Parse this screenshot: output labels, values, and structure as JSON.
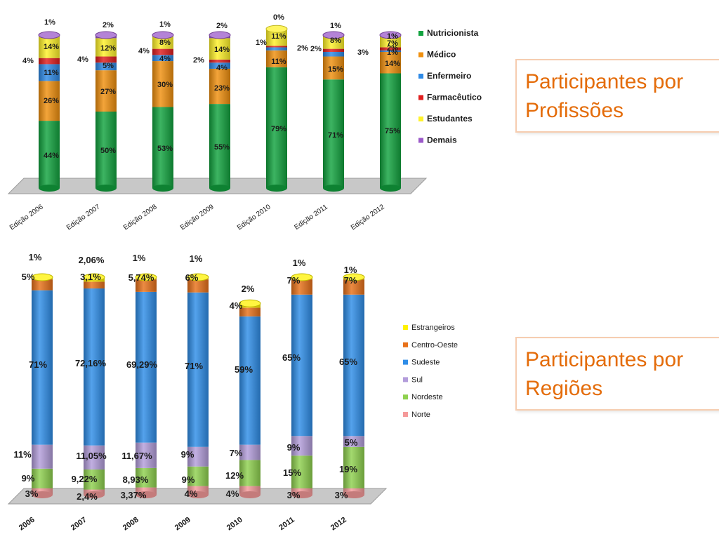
{
  "title_boxes": [
    {
      "line1": "Participantes por",
      "line2": "Profissões"
    },
    {
      "line1": "Participantes por",
      "line2": "Regiões"
    }
  ],
  "chart_data": [
    {
      "type": "bar",
      "stacked": true,
      "categories": [
        "Edição 2006",
        "Edição 2007",
        "Edição 2008",
        "Edição 2009",
        "Edição 2010",
        "Edição 2011",
        "Edição 2012"
      ],
      "series": [
        {
          "name": "Nutricionista",
          "color": "#12a33f",
          "values": [
            44,
            50,
            53,
            55,
            79,
            71,
            75
          ],
          "labels": [
            "44%",
            "50%",
            "53%",
            "55%",
            "79%",
            "71%",
            "75%"
          ]
        },
        {
          "name": "Médico",
          "color": "#f0900f",
          "values": [
            26,
            27,
            30,
            23,
            11,
            15,
            14
          ],
          "labels": [
            "26%",
            "27%",
            "30%",
            "23%",
            "11%",
            "15%",
            "14%"
          ]
        },
        {
          "name": "Enfermeiro",
          "color": "#2e8ae6",
          "values": [
            11,
            5,
            4,
            4,
            2,
            3,
            1
          ],
          "labels": [
            "11%",
            "5%",
            "4%",
            "4%",
            "2%",
            "3%",
            "1%"
          ]
        },
        {
          "name": "Farmacêutico",
          "color": "#e01d1d",
          "values": [
            4,
            4,
            4,
            2,
            1,
            2,
            2
          ],
          "labels": [
            "4%",
            "4%",
            "4%",
            "2%",
            "1%",
            "2%",
            "2%"
          ]
        },
        {
          "name": "Estudantes",
          "color": "#fff22a",
          "values": [
            14,
            12,
            8,
            14,
            11,
            8,
            7
          ],
          "labels": [
            "14%",
            "12%",
            "8%",
            "14%",
            "11%",
            "8%",
            "7%"
          ]
        },
        {
          "name": "Demais",
          "color": "#9b59c9",
          "values": [
            1,
            2,
            1,
            2,
            0,
            1,
            1
          ],
          "labels": [
            "1%",
            "2%",
            "1%",
            "2%",
            "0%",
            "1%",
            "1%"
          ]
        }
      ],
      "ylim": [
        0,
        100
      ],
      "legend": "right"
    },
    {
      "type": "bar",
      "stacked": true,
      "categories": [
        "2006",
        "2007",
        "2008",
        "2009",
        "2010",
        "2011",
        "2012"
      ],
      "series": [
        {
          "name": "Norte",
          "color": "#f59a9a",
          "values": [
            3,
            2.4,
            3.37,
            4,
            4,
            3,
            3
          ],
          "labels": [
            "3%",
            "2,4%",
            "3,37%",
            "4%",
            "4%",
            "3%",
            "3%"
          ]
        },
        {
          "name": "Nordeste",
          "color": "#8fd14f",
          "values": [
            9,
            9.22,
            8.93,
            9,
            12,
            15,
            19
          ],
          "labels": [
            "9%",
            "9,22%",
            "8,93%",
            "9%",
            "12%",
            "15%",
            "19%"
          ]
        },
        {
          "name": "Sul",
          "color": "#b39ddb",
          "values": [
            11,
            11.05,
            11.67,
            9,
            7,
            9,
            5
          ],
          "labels": [
            "11%",
            "11,05%",
            "11,67%",
            "9%",
            "7%",
            "9%",
            "5%"
          ]
        },
        {
          "name": "Sudeste",
          "color": "#2f8de8",
          "values": [
            71,
            72.16,
            69.29,
            71,
            59,
            65,
            65
          ],
          "labels": [
            "71%",
            "72,16%",
            "69,29%",
            "71%",
            "59%",
            "65%",
            "65%"
          ]
        },
        {
          "name": "Centro-Oeste",
          "color": "#e8711a",
          "values": [
            5,
            3.1,
            5.74,
            6,
            4,
            7,
            7
          ],
          "labels": [
            "5%",
            "3,1%",
            "5,74%",
            "6%",
            "4%",
            "7%",
            "7%"
          ]
        },
        {
          "name": "Estrangeiros",
          "color": "#fff200",
          "values": [
            1,
            2.06,
            1,
            1,
            2,
            1,
            1
          ],
          "labels": [
            "1%",
            "2,06%",
            "1%",
            "1%",
            "2%",
            "1%",
            "1%"
          ]
        }
      ],
      "ylim": [
        0,
        100
      ],
      "legend": "right"
    }
  ]
}
